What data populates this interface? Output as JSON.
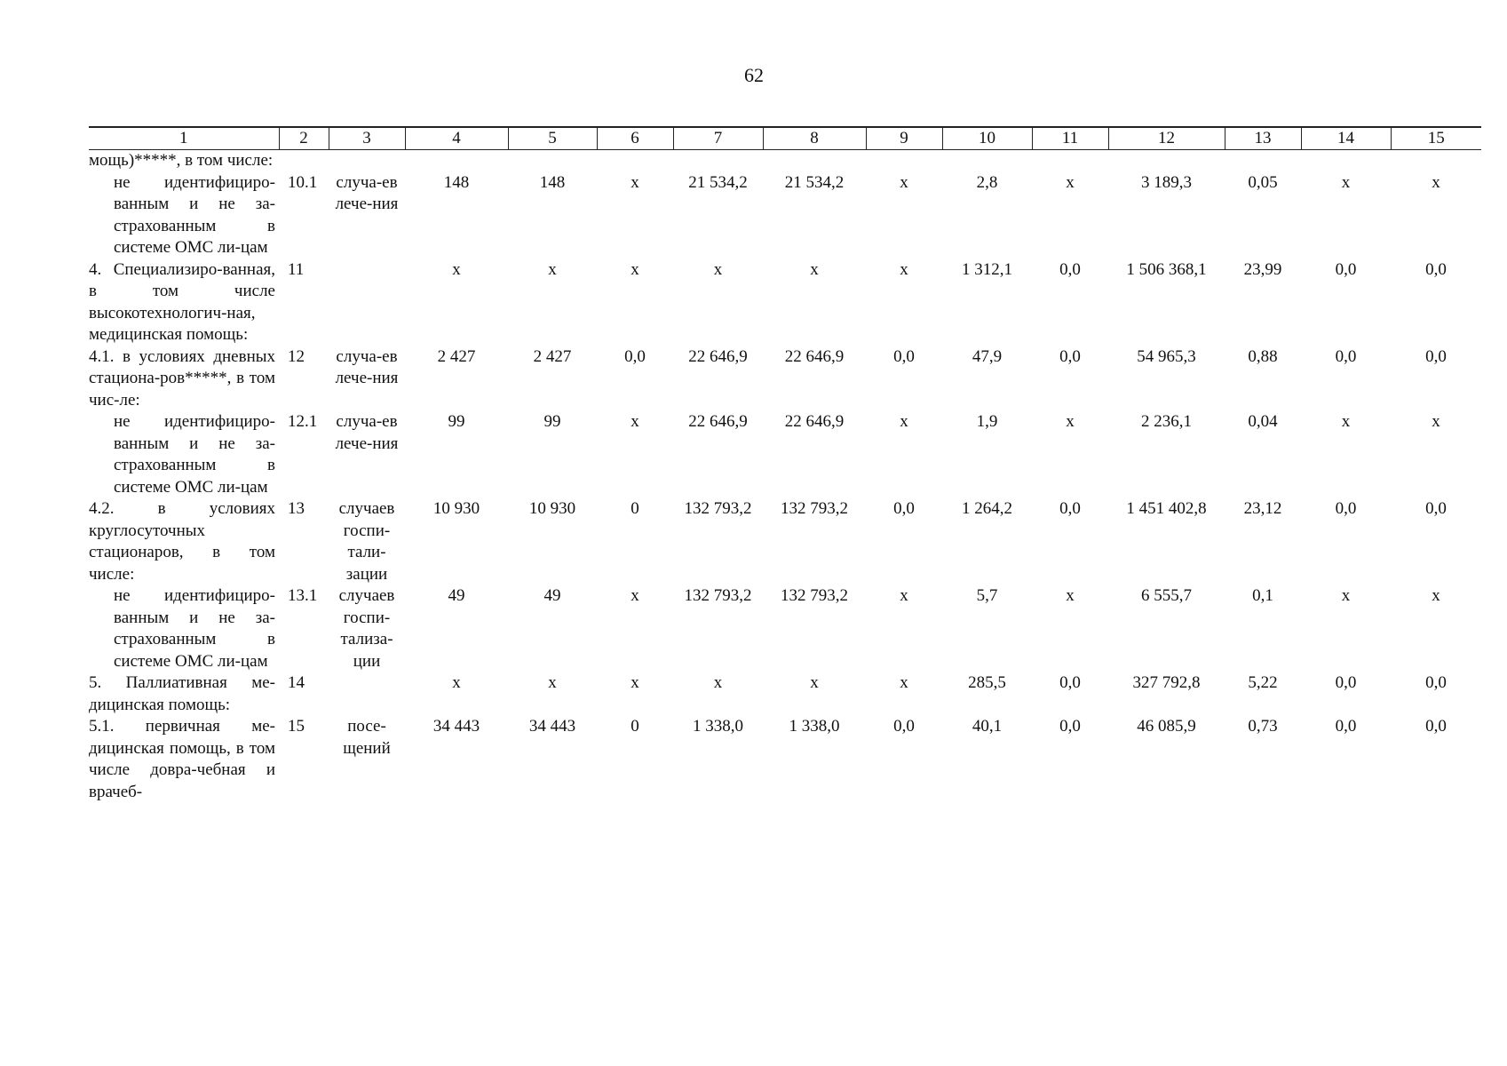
{
  "page_number": "62",
  "header": [
    "1",
    "2",
    "3",
    "4",
    "5",
    "6",
    "7",
    "8",
    "9",
    "10",
    "11",
    "12",
    "13",
    "14",
    "15"
  ],
  "rows": [
    {
      "name": "мощь)*****, в том числе:",
      "indent": false,
      "num": "",
      "unit": "",
      "values": [
        "",
        "",
        "",
        "",
        "",
        "",
        "",
        "",
        "",
        "",
        "",
        ""
      ]
    },
    {
      "name": "не идентифициро-ванным и не за-страхованным в системе ОМС ли-цам",
      "indent": true,
      "num": "10.1",
      "unit": "случа-ев лече-ния",
      "values": [
        "148",
        "148",
        "х",
        "21 534,2",
        "21 534,2",
        "х",
        "2,8",
        "х",
        "3 189,3",
        "0,05",
        "х",
        "х"
      ]
    },
    {
      "name": "4. Специализиро-ванная, в том числе высокотехнологич-ная, медицинская помощь:",
      "indent": false,
      "num": "11",
      "unit": "",
      "values": [
        "х",
        "х",
        "х",
        "х",
        "х",
        "х",
        "1 312,1",
        "0,0",
        "1 506 368,1",
        "23,99",
        "0,0",
        "0,0"
      ]
    },
    {
      "name": "4.1. в условиях дневных стациона-ров*****, в том чис-ле:",
      "indent": false,
      "num": "12",
      "unit": "случа-ев лече-ния",
      "values": [
        "2 427",
        "2 427",
        "0,0",
        "22 646,9",
        "22 646,9",
        "0,0",
        "47,9",
        "0,0",
        "54 965,3",
        "0,88",
        "0,0",
        "0,0"
      ]
    },
    {
      "name": "не идентифициро-ванным и не за-страхованным в системе ОМС ли-цам",
      "indent": true,
      "num": "12.1",
      "unit": "случа-ев лече-ния",
      "values": [
        "99",
        "99",
        "х",
        "22 646,9",
        "22 646,9",
        "х",
        "1,9",
        "х",
        "2 236,1",
        "0,04",
        "х",
        "х"
      ]
    },
    {
      "name": "4.2. в условиях круглосуточных стационаров, в том числе:",
      "indent": false,
      "num": "13",
      "unit": "случаев госпи-тали-зации",
      "values": [
        "10 930",
        "10 930",
        "0",
        "132 793,2",
        "132 793,2",
        "0,0",
        "1 264,2",
        "0,0",
        "1 451 402,8",
        "23,12",
        "0,0",
        "0,0"
      ]
    },
    {
      "name": "не идентифициро-ванным и не за-страхованным в системе ОМС ли-цам",
      "indent": true,
      "num": "13.1",
      "unit": "случаев госпи-тализа-ции",
      "values": [
        "49",
        "49",
        "х",
        "132 793,2",
        "132 793,2",
        "х",
        "5,7",
        "х",
        "6 555,7",
        "0,1",
        "х",
        "х"
      ]
    },
    {
      "name": "5. Паллиативная ме-дицинская помощь:",
      "indent": false,
      "num": "14",
      "unit": "",
      "values": [
        "х",
        "х",
        "х",
        "х",
        "х",
        "х",
        "285,5",
        "0,0",
        "327 792,8",
        "5,22",
        "0,0",
        "0,0"
      ]
    },
    {
      "name": "5.1. первичная ме-дицинская помощь, в том числе довра-чебная и врачеб-",
      "indent": false,
      "num": "15",
      "unit": "посе-щений",
      "values": [
        "34 443",
        "34 443",
        "0",
        "1 338,0",
        "1 338,0",
        "0,0",
        "40,1",
        "0,0",
        "46 085,9",
        "0,73",
        "0,0",
        "0,0"
      ]
    }
  ]
}
